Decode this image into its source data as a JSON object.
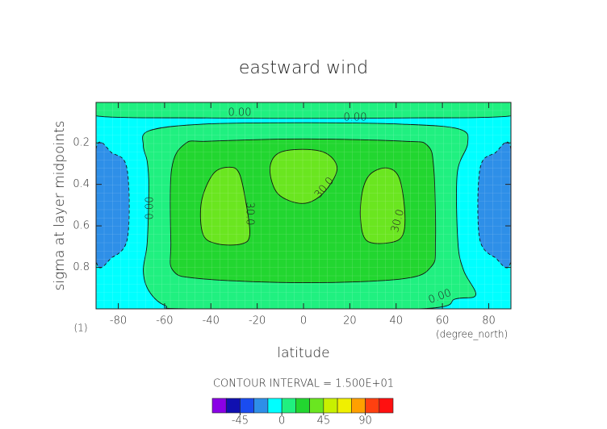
{
  "chart_data": {
    "type": "contour",
    "title": "eastward wind",
    "x_label": "latitude",
    "y_label": "sigma at layer midpoints",
    "x_unit": "(degree_north)",
    "y_unit": "(1)",
    "contour_interval_text": "CONTOUR INTERVAL = 1.500E+01",
    "xlim": [
      -89.6,
      89.6
    ],
    "xticks": [
      -80,
      -60,
      -40,
      -20,
      0,
      20,
      40,
      60,
      80
    ],
    "ylim": [
      0.005,
      1.0
    ],
    "y_inverted": true,
    "yticks": [
      0.2,
      0.4,
      0.6,
      0.8
    ],
    "grid": true,
    "background_level": -15,
    "regions": [
      {
        "level": 0,
        "points": [
          [
            -89.6,
            0.005
          ],
          [
            89.6,
            0.005
          ],
          [
            89.6,
            0.07
          ],
          [
            40,
            0.08
          ],
          [
            0,
            0.082
          ],
          [
            -40,
            0.08
          ],
          [
            -89.6,
            0.07
          ]
        ]
      },
      {
        "level": -30,
        "points": [
          [
            -89.6,
            0.231
          ],
          [
            -82.4,
            0.251
          ],
          [
            -77.2,
            0.29
          ],
          [
            -75.5,
            0.407
          ],
          [
            -75.5,
            0.602
          ],
          [
            -77.2,
            0.699
          ],
          [
            -82.4,
            0.75
          ],
          [
            -89.6,
            0.765
          ]
        ]
      },
      {
        "level": -30,
        "points": [
          [
            89.6,
            0.231
          ],
          [
            82.4,
            0.251
          ],
          [
            77.2,
            0.29
          ],
          [
            75.5,
            0.407
          ],
          [
            75.5,
            0.602
          ],
          [
            77.2,
            0.699
          ],
          [
            82.4,
            0.75
          ],
          [
            89.6,
            0.765
          ]
        ]
      },
      {
        "level": 0,
        "points": [
          [
            -69.2,
            0.212
          ],
          [
            -66.8,
            0.142
          ],
          [
            -44.1,
            0.11
          ],
          [
            0,
            0.103
          ],
          [
            43,
            0.11
          ],
          [
            67.4,
            0.134
          ],
          [
            70.9,
            0.204
          ],
          [
            66.4,
            0.348
          ],
          [
            66.7,
            0.68
          ],
          [
            69.2,
            0.816
          ],
          [
            74.4,
            0.933
          ],
          [
            65.7,
            0.952
          ],
          [
            50,
            1.0
          ],
          [
            -47.6,
            1.0
          ],
          [
            -59.8,
            0.984
          ],
          [
            -66.8,
            0.913
          ],
          [
            -69.2,
            0.816
          ],
          [
            -67.5,
            0.68
          ],
          [
            -66.8,
            0.407
          ],
          [
            -67.5,
            0.29
          ]
        ]
      },
      {
        "level": 15,
        "points": [
          [
            -51.1,
            0.204
          ],
          [
            -40.6,
            0.192
          ],
          [
            0,
            0.181
          ],
          [
            43,
            0.192
          ],
          [
            53.5,
            0.212
          ],
          [
            56.3,
            0.329
          ],
          [
            57,
            0.68
          ],
          [
            55.2,
            0.796
          ],
          [
            43,
            0.855
          ],
          [
            0,
            0.874
          ],
          [
            -44.1,
            0.855
          ],
          [
            -56.3,
            0.816
          ],
          [
            -57.3,
            0.68
          ],
          [
            -57,
            0.329
          ]
        ]
      },
      {
        "level": 30,
        "points": [
          [
            -38.9,
            0.348
          ],
          [
            -31.9,
            0.317
          ],
          [
            -27.7,
            0.348
          ],
          [
            -24.9,
            0.485
          ],
          [
            -23.2,
            0.641
          ],
          [
            -26.7,
            0.687
          ],
          [
            -37.1,
            0.687
          ],
          [
            -43.4,
            0.641
          ],
          [
            -44.1,
            0.485
          ]
        ]
      },
      {
        "level": 30,
        "points": [
          [
            -11,
            0.251
          ],
          [
            -0.5,
            0.231
          ],
          [
            9.9,
            0.251
          ],
          [
            14.5,
            0.329
          ],
          [
            8.2,
            0.446
          ],
          [
            -0.5,
            0.492
          ],
          [
            -11,
            0.446
          ],
          [
            -14.5,
            0.329
          ]
        ]
      },
      {
        "level": 30,
        "points": [
          [
            29.1,
            0.348
          ],
          [
            36.1,
            0.321
          ],
          [
            41.3,
            0.368
          ],
          [
            43.7,
            0.524
          ],
          [
            43,
            0.641
          ],
          [
            37.8,
            0.68
          ],
          [
            27.4,
            0.672
          ],
          [
            24.6,
            0.563
          ],
          [
            25.6,
            0.426
          ]
        ]
      }
    ],
    "contour_labels": [
      {
        "value": 0,
        "label": "0.00"
      },
      {
        "value": 0,
        "label": "0.00"
      },
      {
        "value": 0,
        "label": "0.00"
      },
      {
        "value": 0,
        "label": "0.00"
      },
      {
        "value": 30,
        "label": "30.0"
      },
      {
        "value": 30,
        "label": "30.0"
      },
      {
        "value": 30,
        "label": "30.0"
      }
    ],
    "colorbar": {
      "levels": [
        -75,
        -60,
        -45,
        -30,
        -15,
        0,
        15,
        30,
        45,
        60,
        75,
        90,
        105,
        120
      ],
      "colors": [
        "#8a00e6",
        "#1010b0",
        "#1a4cf0",
        "#2e8fe8",
        "#00ffff",
        "#20f080",
        "#22d630",
        "#6ae620",
        "#c8f000",
        "#f0f000",
        "#ffa000",
        "#ff4010",
        "#ff1010"
      ],
      "ticks": [
        -45,
        0,
        45,
        90
      ]
    }
  }
}
